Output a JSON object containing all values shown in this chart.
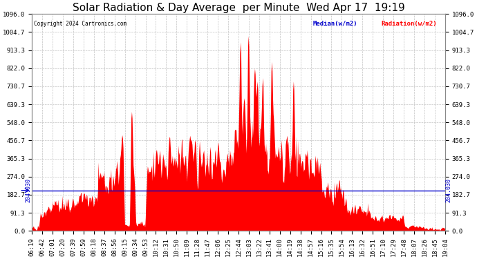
{
  "title": "Solar Radiation & Day Average  per Minute  Wed Apr 17  19:19",
  "copyright": "Copyright 2024 Cartronics.com",
  "legend_median": "Median(w/m2)",
  "legend_radiation": "Radiation(w/m2)",
  "median_value": 204.03,
  "ymin": 0.0,
  "ymax": 1096.0,
  "yticks": [
    0.0,
    91.3,
    182.7,
    274.0,
    365.3,
    456.7,
    548.0,
    639.3,
    730.7,
    822.0,
    913.3,
    1004.7,
    1096.0
  ],
  "background_color": "#ffffff",
  "plot_bg_color": "#ffffff",
  "grid_color": "#bbbbbb",
  "bar_color": "#ff0000",
  "median_color": "#0000cc",
  "title_color": "#000000",
  "copyright_color": "#000000",
  "legend_median_color": "#0000cc",
  "legend_radiation_color": "#ff0000",
  "xtick_labels": [
    "06:19",
    "06:42",
    "07:01",
    "07:20",
    "07:39",
    "07:59",
    "08:18",
    "08:37",
    "08:56",
    "09:15",
    "09:34",
    "09:53",
    "10:12",
    "10:31",
    "10:50",
    "11:09",
    "11:28",
    "11:47",
    "12:06",
    "12:25",
    "12:44",
    "13:03",
    "13:22",
    "13:41",
    "14:00",
    "14:19",
    "14:38",
    "14:57",
    "15:16",
    "15:35",
    "15:54",
    "16:13",
    "16:32",
    "16:51",
    "17:10",
    "17:29",
    "17:48",
    "18:07",
    "18:26",
    "18:45",
    "19:04"
  ],
  "num_points": 780,
  "title_fontsize": 11,
  "tick_fontsize": 6.5,
  "median_label": "204.030",
  "figwidth": 6.9,
  "figheight": 3.75,
  "dpi": 100
}
